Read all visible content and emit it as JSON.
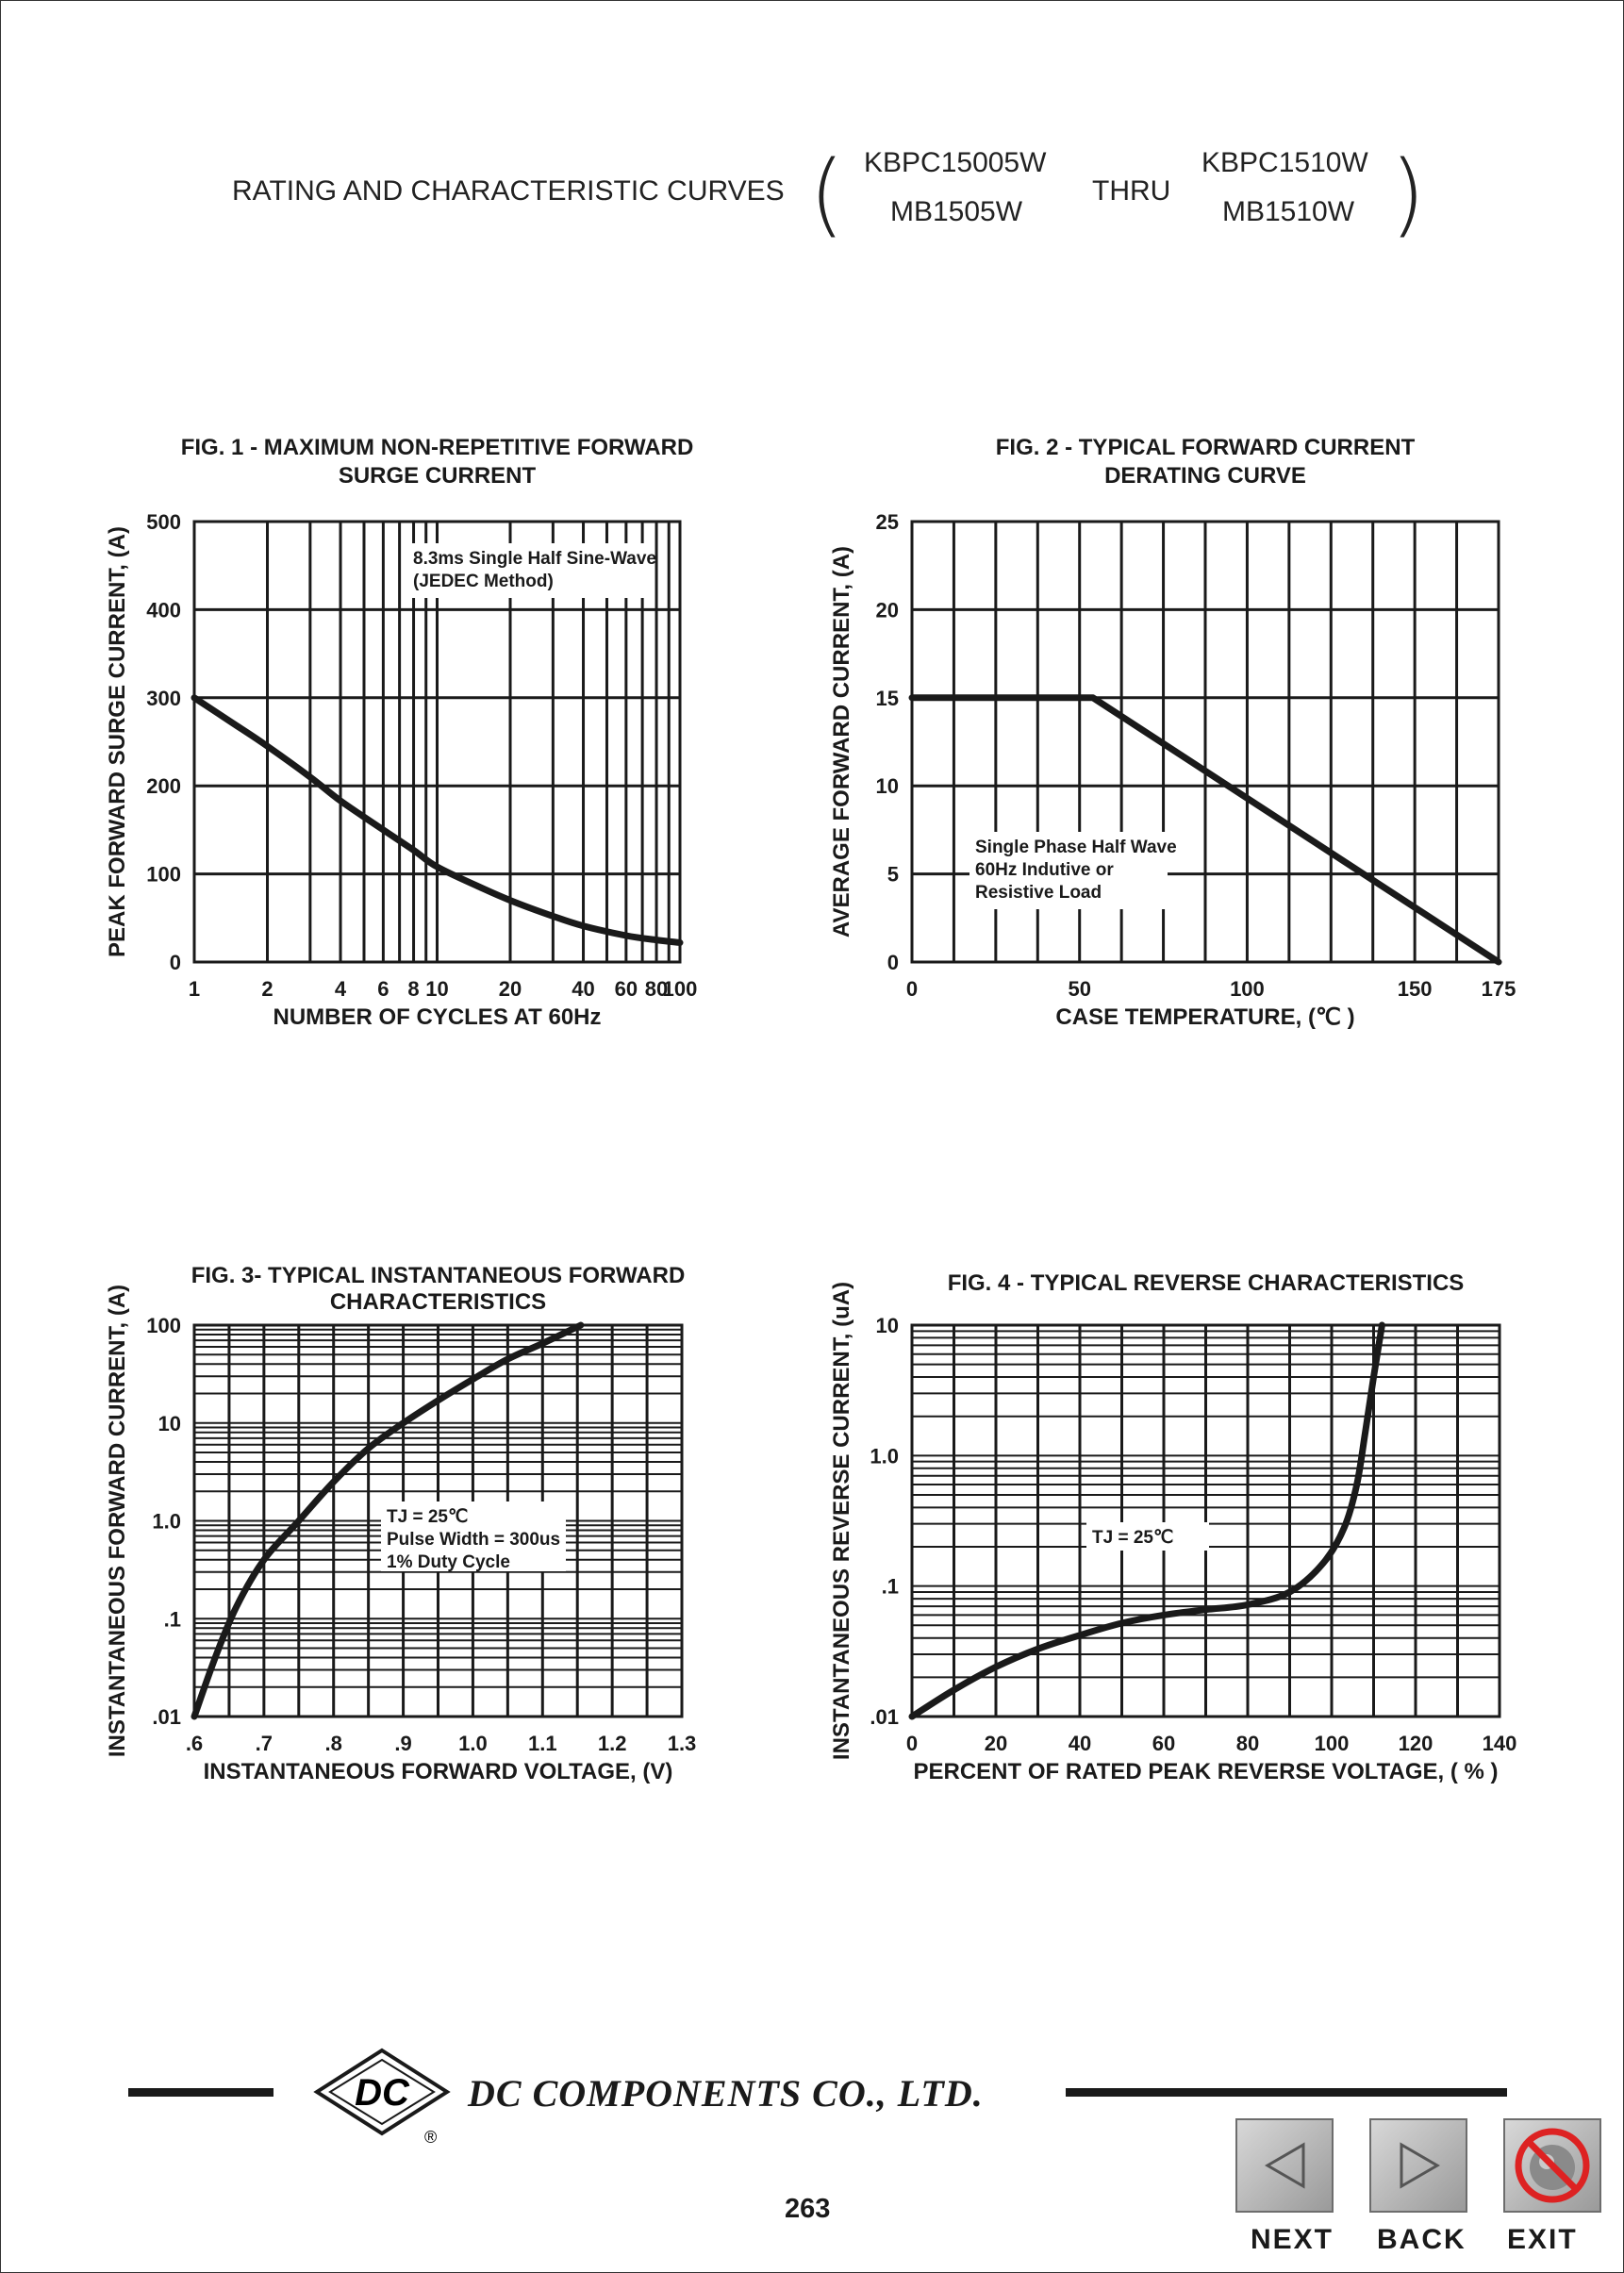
{
  "header": {
    "title": "RATING AND CHARACTERISTIC CURVES",
    "part_a_top": "KBPC15005W",
    "part_a_bottom": "MB1505W",
    "thru": "THRU",
    "part_b_top": "KBPC1510W",
    "part_b_bottom": "MB1510W"
  },
  "chart_data": [
    {
      "type": "line",
      "title": "FIG. 1 - MAXIMUM NON-REPETITIVE FORWARD SURGE CURRENT",
      "title_line1": "FIG. 1 - MAXIMUM NON-REPETITIVE FORWARD",
      "title_line2": "SURGE CURRENT",
      "xlabel": "NUMBER OF CYCLES AT 60Hz",
      "ylabel": "PEAK FORWARD SURGE CURRENT, (A)",
      "xscale": "log",
      "xlim": [
        1,
        100
      ],
      "ylim": [
        0,
        500
      ],
      "x_ticks": [
        1,
        2,
        4,
        6,
        8,
        10,
        20,
        40,
        60,
        80,
        100
      ],
      "x_tick_labels": [
        "1",
        "2",
        "4",
        "6",
        "8",
        "10",
        "20",
        "40",
        "60",
        "80",
        "100"
      ],
      "y_ticks": [
        0,
        100,
        200,
        300,
        400,
        500
      ],
      "y_tick_labels": [
        "0",
        "100",
        "200",
        "300",
        "400",
        "500"
      ],
      "annotation_line1": "8.3ms Single Half Sine-Wave",
      "annotation_line2": "(JEDEC Method)",
      "grid": true,
      "series": [
        {
          "x": [
            1,
            1.5,
            2,
            3,
            4,
            6,
            8,
            10,
            15,
            20,
            30,
            40,
            60,
            80,
            100
          ],
          "values": [
            300,
            268,
            245,
            210,
            183,
            150,
            127,
            108,
            85,
            70,
            52,
            41,
            30,
            25,
            22
          ]
        }
      ]
    },
    {
      "type": "line",
      "title": "FIG. 2 - TYPICAL FORWARD CURRENT DERATING CURVE",
      "title_line1": "FIG. 2 - TYPICAL FORWARD CURRENT",
      "title_line2": "DERATING CURVE",
      "xlabel": "CASE TEMPERATURE, (℃ )",
      "ylabel": "AVERAGE FORWARD  CURRENT, (A)",
      "xlim": [
        0,
        175
      ],
      "ylim": [
        0,
        25
      ],
      "x_ticks": [
        0,
        50,
        100,
        150,
        175
      ],
      "x_tick_labels": [
        "0",
        "50",
        "100",
        "150",
        "175"
      ],
      "y_ticks": [
        0,
        5,
        10,
        15,
        20,
        25
      ],
      "y_tick_labels": [
        "0",
        "5",
        "10",
        "15",
        "20",
        "25"
      ],
      "annotation_line1": "Single Phase Half Wave",
      "annotation_line2": "60Hz Indutive or",
      "annotation_line3": "Resistive Load",
      "grid": true,
      "series": [
        {
          "x": [
            0,
            54,
            175
          ],
          "values": [
            15,
            15,
            0
          ]
        }
      ]
    },
    {
      "type": "line",
      "title": "FIG. 3- TYPICAL INSTANTANEOUS FORWARD CHARACTERISTICS",
      "title_line1": "FIG. 3- TYPICAL INSTANTANEOUS FORWARD",
      "title_line2": "CHARACTERISTICS",
      "xlabel": "INSTANTANEOUS FORWARD VOLTAGE, (V)",
      "ylabel": "INSTANTANEOUS FORWARD CURRENT, (A)",
      "yscale": "log",
      "xlim": [
        0.6,
        1.3
      ],
      "ylim": [
        0.01,
        100
      ],
      "x_ticks": [
        0.6,
        0.7,
        0.8,
        0.9,
        1.0,
        1.1,
        1.2,
        1.3
      ],
      "x_tick_labels": [
        ".6",
        ".7",
        ".8",
        ".9",
        "1.0",
        "1.1",
        "1.2",
        "1.3"
      ],
      "y_ticks": [
        0.01,
        0.1,
        1,
        10,
        100
      ],
      "y_tick_labels": [
        ".01",
        ".1",
        "1.0",
        "10",
        "100"
      ],
      "annotation_line1": "TJ = 25℃",
      "annotation_line2": "Pulse Width = 300us",
      "annotation_line3": "1% Duty Cycle",
      "grid": true,
      "series": [
        {
          "x": [
            0.6,
            0.63,
            0.66,
            0.7,
            0.75,
            0.8,
            0.85,
            0.9,
            0.95,
            1.0,
            1.05,
            1.1,
            1.155
          ],
          "values": [
            0.01,
            0.04,
            0.13,
            0.4,
            1.0,
            2.5,
            5.5,
            10,
            17,
            28,
            45,
            65,
            100
          ]
        }
      ]
    },
    {
      "type": "line",
      "title": "FIG. 4 - TYPICAL REVERSE CHARACTERISTICS",
      "xlabel": "PERCENT OF RATED PEAK REVERSE VOLTAGE, ( % )",
      "ylabel": "INSTANTANEOUS REVERSE CURRENT, (uA)",
      "yscale": "log",
      "xlim": [
        0,
        140
      ],
      "ylim": [
        0.01,
        10
      ],
      "x_ticks": [
        0,
        20,
        40,
        60,
        80,
        100,
        120,
        140
      ],
      "x_tick_labels": [
        "0",
        "20",
        "40",
        "60",
        "80",
        "100",
        "120",
        "140"
      ],
      "y_ticks": [
        0.01,
        0.1,
        1,
        10
      ],
      "y_tick_labels": [
        ".01",
        ".1",
        "1.0",
        "10"
      ],
      "annotation_line1": "TJ = 25℃",
      "grid": true,
      "series": [
        {
          "x": [
            0,
            10,
            20,
            30,
            40,
            50,
            60,
            70,
            80,
            90,
            98,
            103,
            106,
            108,
            110,
            112
          ],
          "values": [
            0.01,
            0.016,
            0.024,
            0.033,
            0.042,
            0.052,
            0.06,
            0.066,
            0.072,
            0.09,
            0.15,
            0.28,
            0.6,
            1.5,
            4,
            10
          ]
        }
      ]
    }
  ],
  "footer": {
    "logo_letters": "DC",
    "registered": "®",
    "company": "DC COMPONENTS CO., LTD.",
    "page_number": "263"
  },
  "nav": {
    "next_label": "NEXT",
    "back_label": "BACK",
    "exit_label": "EXIT"
  }
}
